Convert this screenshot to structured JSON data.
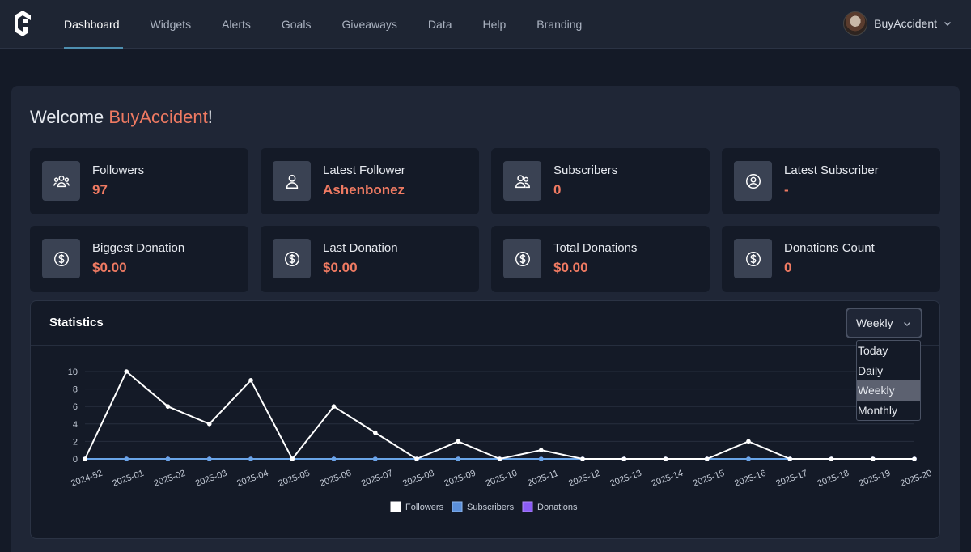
{
  "nav": {
    "items": [
      {
        "label": "Dashboard",
        "active": true
      },
      {
        "label": "Widgets"
      },
      {
        "label": "Alerts"
      },
      {
        "label": "Goals"
      },
      {
        "label": "Giveaways"
      },
      {
        "label": "Data"
      },
      {
        "label": "Help"
      },
      {
        "label": "Branding"
      }
    ],
    "user_name": "BuyAccident"
  },
  "welcome": {
    "prefix": "Welcome ",
    "name": "BuyAccident",
    "suffix": "!"
  },
  "cards": [
    {
      "icon": "users-icon",
      "label": "Followers",
      "value": "97"
    },
    {
      "icon": "user-icon",
      "label": "Latest Follower",
      "value": "Ashenbonez"
    },
    {
      "icon": "user-group-icon",
      "label": "Subscribers",
      "value": "0"
    },
    {
      "icon": "user-circle-icon",
      "label": "Latest Subscriber",
      "value": "-"
    },
    {
      "icon": "dollar-icon",
      "label": "Biggest Donation",
      "value": "$0.00"
    },
    {
      "icon": "dollar-icon",
      "label": "Last Donation",
      "value": "$0.00"
    },
    {
      "icon": "dollar-icon",
      "label": "Total Donations",
      "value": "$0.00"
    },
    {
      "icon": "dollar-icon",
      "label": "Donations Count",
      "value": "0"
    }
  ],
  "statistics": {
    "title": "Statistics",
    "period_selected": "Weekly",
    "period_options": [
      "Today",
      "Daily",
      "Weekly",
      "Monthly"
    ]
  },
  "colors": {
    "accent": "#ef7a62",
    "followers": "#ffffff",
    "subscribers": "#6aa5e8",
    "donations": "#8b5cf6"
  },
  "chart_data": {
    "type": "line",
    "x": [
      "2024-52",
      "2025-01",
      "2025-02",
      "2025-03",
      "2025-04",
      "2025-05",
      "2025-06",
      "2025-07",
      "2025-08",
      "2025-09",
      "2025-10",
      "2025-11",
      "2025-12",
      "2025-13",
      "2025-14",
      "2025-15",
      "2025-16",
      "2025-17",
      "2025-18",
      "2025-19",
      "2025-20"
    ],
    "series": [
      {
        "name": "Followers",
        "values": [
          0,
          10,
          6,
          4,
          9,
          0,
          6,
          3,
          0,
          2,
          0,
          1,
          0,
          0,
          0,
          0,
          2,
          0,
          0,
          0,
          0
        ]
      },
      {
        "name": "Subscribers",
        "values": [
          0,
          0,
          0,
          0,
          0,
          0,
          0,
          0,
          0,
          0,
          0,
          0,
          0,
          0,
          0,
          0,
          0,
          0,
          0,
          0,
          0
        ]
      },
      {
        "name": "Donations",
        "values": [
          0,
          0,
          0,
          0,
          0,
          0,
          0,
          0,
          0,
          0,
          0,
          0,
          0,
          0,
          0,
          0,
          0,
          0,
          0,
          0,
          0
        ]
      }
    ],
    "yticks": [
      0,
      2,
      4,
      6,
      8,
      10
    ],
    "ylim": [
      0,
      10
    ],
    "legend": "bottom"
  }
}
